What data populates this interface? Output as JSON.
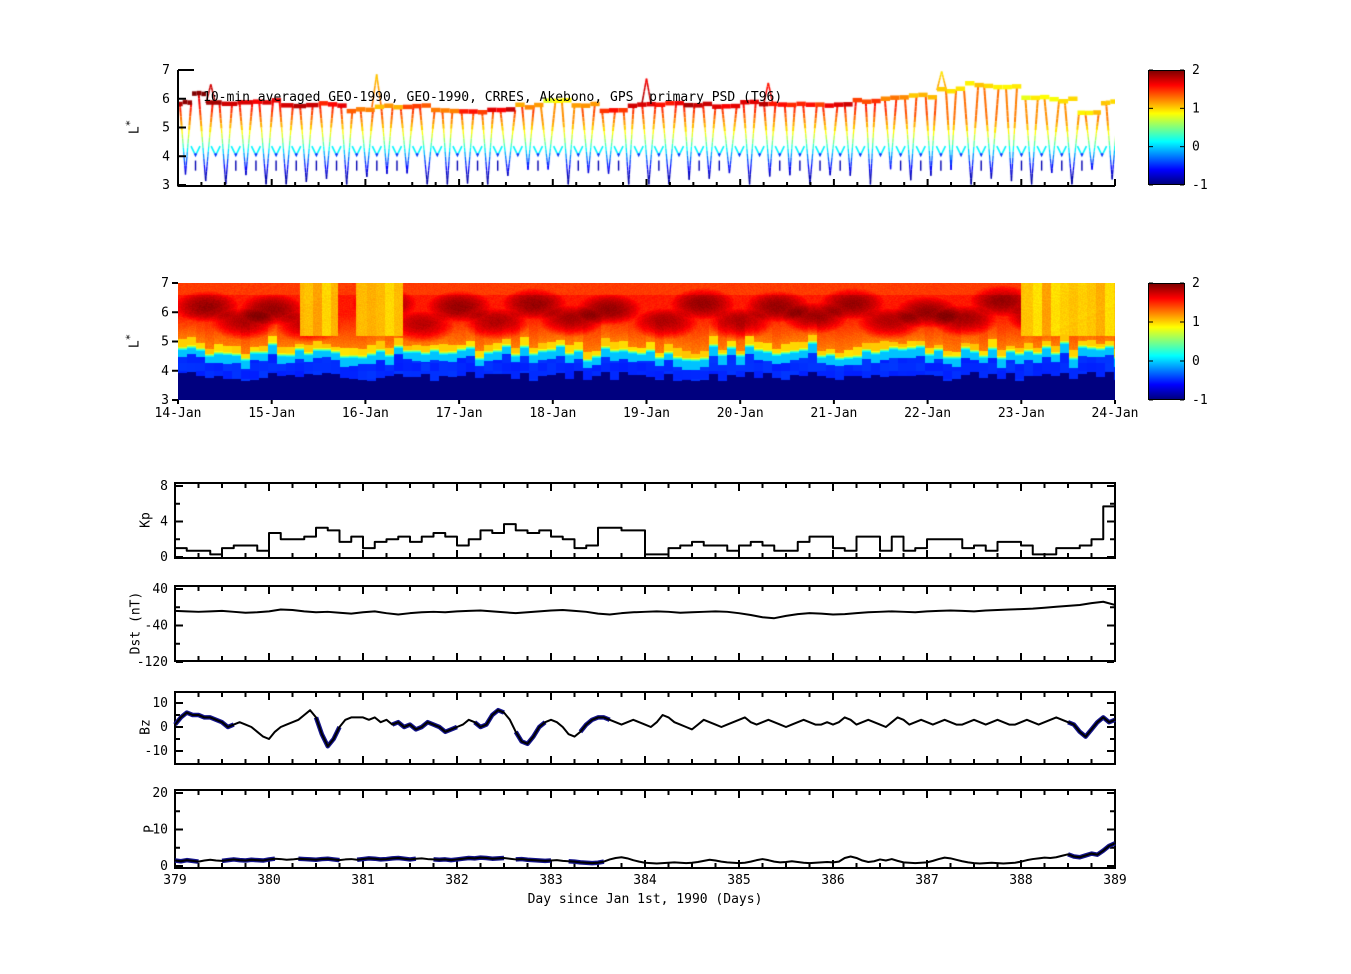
{
  "figure": {
    "bg": "#ffffff"
  },
  "title": "10-min averaged GEO-1990, GEO-1990, CRRES, Akebono, GPS  primary PSD (T96)",
  "xaxis": {
    "label": "Day since Jan 1st, 1990 (Days)",
    "day_ticks": [
      "379",
      "380",
      "381",
      "382",
      "383",
      "384",
      "385",
      "386",
      "387",
      "388",
      "389"
    ],
    "date_ticks": [
      "14-Jan",
      "15-Jan",
      "16-Jan",
      "17-Jan",
      "18-Jan",
      "19-Jan",
      "20-Jan",
      "21-Jan",
      "22-Jan",
      "23-Jan",
      "24-Jan"
    ]
  },
  "colorbar": {
    "min": -1,
    "max": 2,
    "tick_labels": [
      "2",
      "1",
      "0",
      "-1"
    ],
    "tick_values": [
      2,
      1,
      0,
      -1
    ],
    "jet_stops": [
      "#800000",
      "#ff0000",
      "#ffff00",
      "#00ffff",
      "#0000ff",
      "#000080"
    ],
    "jet_positions": [
      0,
      12.5,
      37.5,
      62.5,
      87.5,
      100
    ]
  },
  "chart_data": [
    {
      "type": "scatter",
      "name": "psd_lstar_trajectories",
      "title": "10-min averaged GEO-1990, GEO-1990, CRRES, Akebono, GPS  primary PSD (T96)",
      "ylabel": "L*",
      "ylim": [
        3,
        7
      ],
      "ytick_labels": [
        "3",
        "4",
        "5",
        "6",
        "7"
      ],
      "xlim_days": [
        379,
        389
      ],
      "color_value": "log10 PSD",
      "clim": [
        -1,
        2
      ],
      "geo_band_keypoints": [
        [
          0,
          5.85,
          1.9
        ],
        [
          0.15,
          6.2,
          2.0
        ],
        [
          0.3,
          5.85,
          1.8
        ],
        [
          0.8,
          5.9,
          1.7
        ],
        [
          1.1,
          5.75,
          1.8
        ],
        [
          1.5,
          5.8,
          1.6
        ],
        [
          1.8,
          5.6,
          1.3
        ],
        [
          2.1,
          5.7,
          1.1
        ],
        [
          2.4,
          5.75,
          1.4
        ],
        [
          2.7,
          5.6,
          1.2
        ],
        [
          3.0,
          5.55,
          1.5
        ],
        [
          3.3,
          5.6,
          1.7
        ],
        [
          3.6,
          5.75,
          1.2
        ],
        [
          3.9,
          5.9,
          0.9
        ],
        [
          4.2,
          5.8,
          1.1
        ],
        [
          4.5,
          5.55,
          1.5
        ],
        [
          4.8,
          5.8,
          1.7
        ],
        [
          5.1,
          5.85,
          1.6
        ],
        [
          5.4,
          5.8,
          1.8
        ],
        [
          5.7,
          5.75,
          1.7
        ],
        [
          6.0,
          5.85,
          1.8
        ],
        [
          6.3,
          5.8,
          1.6
        ],
        [
          6.6,
          5.85,
          1.5
        ],
        [
          6.9,
          5.8,
          1.7
        ],
        [
          7.2,
          5.9,
          1.4
        ],
        [
          7.5,
          6.0,
          1.2
        ],
        [
          7.8,
          6.1,
          1.1
        ],
        [
          8.1,
          6.3,
          1.0
        ],
        [
          8.4,
          6.5,
          1.0
        ],
        [
          8.7,
          6.4,
          0.95
        ],
        [
          9.0,
          6.05,
          0.9
        ],
        [
          9.3,
          5.95,
          0.9
        ],
        [
          9.6,
          5.55,
          1.0
        ],
        [
          9.85,
          5.9,
          0.95
        ],
        [
          10,
          5.9,
          1.0
        ]
      ],
      "pass_times": [
        0.08,
        0.295,
        0.51,
        0.725,
        0.94,
        1.155,
        1.37,
        1.585,
        1.8,
        2.015,
        2.23,
        2.445,
        2.66,
        2.875,
        3.09,
        3.305,
        3.52,
        3.735,
        3.95,
        4.165,
        4.38,
        4.595,
        4.81,
        5.025,
        5.24,
        5.455,
        5.67,
        5.885,
        6.1,
        6.315,
        6.53,
        6.745,
        6.96,
        7.175,
        7.39,
        7.605,
        7.82,
        8.035,
        8.25,
        8.465,
        8.68,
        8.895,
        9.11,
        9.325,
        9.54,
        9.755,
        9.97
      ],
      "spikes": [
        [
          0.35,
          6.5
        ],
        [
          2.12,
          6.85
        ],
        [
          5.0,
          6.7
        ],
        [
          6.3,
          6.55
        ],
        [
          8.15,
          6.95
        ]
      ],
      "psd_vs_L_profile": [
        [
          3,
          -0.95
        ],
        [
          3.4,
          -0.8
        ],
        [
          3.8,
          -0.45
        ],
        [
          4.1,
          -0.1
        ],
        [
          4.4,
          0.35
        ],
        [
          4.8,
          0.85
        ],
        [
          5.2,
          1.2
        ],
        [
          5.6,
          1.5
        ],
        [
          6.0,
          1.7
        ]
      ]
    },
    {
      "type": "heatmap",
      "name": "psd_lstar_map",
      "ylabel": "L*",
      "ylim": [
        3,
        7
      ],
      "ytick_labels": [
        "3",
        "4",
        "5",
        "6",
        "7"
      ],
      "xtick_labels": [
        "14-Jan",
        "15-Jan",
        "16-Jan",
        "17-Jan",
        "18-Jan",
        "19-Jan",
        "20-Jan",
        "21-Jan",
        "22-Jan",
        "23-Jan",
        "24-Jan"
      ],
      "clim": [
        -1,
        2
      ],
      "band_structure": {
        "navy_top_L": 3.8,
        "blue_top_L": 4.35,
        "cyan_top_L": 4.6,
        "yellow_top_L": 5.05,
        "navy_value": -1,
        "blue_value": -0.5,
        "cyan_value": -0.05,
        "yellow_value": 0.95,
        "upper_value_range": [
          1.25,
          1.55
        ]
      },
      "dark_red_blobs": [
        [
          0.03,
          6.2
        ],
        [
          0.07,
          5.6
        ],
        [
          0.1,
          6.1
        ],
        [
          0.14,
          5.5
        ],
        [
          0.22,
          6.3
        ],
        [
          0.26,
          5.5
        ],
        [
          0.3,
          6.2
        ],
        [
          0.34,
          5.6
        ],
        [
          0.38,
          6.3
        ],
        [
          0.42,
          5.7
        ],
        [
          0.46,
          6.1
        ],
        [
          0.52,
          5.6
        ],
        [
          0.56,
          6.3
        ],
        [
          0.6,
          5.6
        ],
        [
          0.64,
          6.2
        ],
        [
          0.68,
          5.8
        ],
        [
          0.72,
          6.3
        ],
        [
          0.76,
          5.6
        ],
        [
          0.8,
          6.0
        ],
        [
          0.84,
          5.7
        ],
        [
          0.88,
          6.4
        ],
        [
          0.92,
          5.8
        ]
      ],
      "yellow_plumes": [
        [
          0.13,
          0.17
        ],
        [
          0.19,
          0.24
        ],
        [
          0.9,
          1.0
        ]
      ],
      "seed": 7
    },
    {
      "type": "line",
      "name": "kp",
      "ylabel": "Kp",
      "ylim": [
        0,
        8
      ],
      "ytick_labels": [
        "0",
        "4",
        "8"
      ],
      "ytick_values_major": [
        0,
        4,
        8
      ],
      "ytick_values_minor": [
        2,
        6
      ],
      "x_start_day": 379,
      "x_step_days": 0.125,
      "step_plot": true,
      "values": [
        1,
        0.7,
        0.7,
        0.3,
        1,
        1.3,
        1.3,
        0.7,
        2.7,
        2,
        2,
        2.3,
        3.3,
        3,
        1.7,
        2.3,
        1,
        1.7,
        2,
        2.3,
        1.7,
        2.3,
        2.7,
        2.3,
        1.3,
        2,
        3,
        2.7,
        3.7,
        3,
        2.7,
        3,
        2.3,
        2,
        1,
        1.3,
        3.3,
        3.3,
        3,
        3,
        0.3,
        0.3,
        1,
        1.3,
        1.7,
        1.3,
        1.3,
        0.7,
        1.3,
        1.7,
        1.3,
        0.7,
        0.7,
        1.7,
        2.3,
        2.3,
        1,
        0.7,
        2.3,
        2.3,
        0.7,
        2.3,
        0.7,
        1,
        2,
        2,
        2,
        1,
        1.3,
        0.7,
        1.7,
        1.7,
        1.3,
        0.3,
        0.3,
        1,
        1,
        1.3,
        2,
        5.7
      ]
    },
    {
      "type": "line",
      "name": "dst",
      "ylabel": "Dst (nT)",
      "ylim": [
        -120,
        40
      ],
      "ytick_labels": [
        "-120",
        "-40",
        "40"
      ],
      "ytick_values_major": [
        40,
        -40,
        -120
      ],
      "ytick_values_minor": [
        0,
        -80
      ],
      "x_start_day": 379,
      "x_step_days": 0.125,
      "step_plot": false,
      "values": [
        -8,
        -9,
        -10,
        -9,
        -8,
        -10,
        -12,
        -11,
        -9,
        -5,
        -6,
        -9,
        -11,
        -10,
        -12,
        -14,
        -11,
        -9,
        -13,
        -16,
        -13,
        -11,
        -10,
        -11,
        -9,
        -8,
        -7,
        -9,
        -11,
        -13,
        -11,
        -9,
        -7,
        -6,
        -8,
        -10,
        -14,
        -16,
        -13,
        -11,
        -10,
        -9,
        -10,
        -12,
        -11,
        -10,
        -9,
        -10,
        -13,
        -17,
        -22,
        -24,
        -19,
        -15,
        -13,
        -14,
        -16,
        -15,
        -13,
        -11,
        -10,
        -9,
        -10,
        -11,
        -9,
        -8,
        -7,
        -8,
        -9,
        -7,
        -6,
        -5,
        -4,
        -3,
        -1,
        1,
        3,
        5,
        9,
        12,
        5
      ]
    },
    {
      "type": "line",
      "name": "bz",
      "ylabel": "Bz",
      "ylim": [
        -15,
        15
      ],
      "ytick_labels": [
        "-10",
        "0",
        "10"
      ],
      "ytick_values_major": [
        10,
        0,
        -10
      ],
      "ytick_values_minor": [
        5,
        -5
      ],
      "x_start_day": 379,
      "x_step_days": 0.0625,
      "step_plot": false,
      "highlight_color": "#14148c",
      "highlight_ranges_days": [
        [
          379,
          379.65
        ],
        [
          380.45,
          380.8
        ],
        [
          381.3,
          382.05
        ],
        [
          382.15,
          382.55
        ],
        [
          382.6,
          382.95
        ],
        [
          383.3,
          383.65
        ],
        [
          388.45,
          389
        ]
      ],
      "values": [
        1,
        4,
        6,
        5,
        5,
        4,
        4,
        3,
        2,
        0,
        1,
        2,
        1,
        0,
        -2,
        -4,
        -5,
        -2,
        0,
        1,
        2,
        3,
        5,
        7,
        4,
        -3,
        -8,
        -5,
        0,
        3,
        4,
        4,
        4,
        3,
        4,
        2,
        3,
        1,
        2,
        0,
        1,
        -1,
        0,
        2,
        1,
        0,
        -2,
        -1,
        0,
        1,
        3,
        2,
        0,
        1,
        5,
        7,
        6,
        3,
        -2,
        -6,
        -7,
        -4,
        0,
        2,
        3,
        2,
        0,
        -3,
        -4,
        -2,
        1,
        3,
        4,
        4,
        3,
        2,
        1,
        2,
        3,
        2,
        1,
        0,
        2,
        5,
        4,
        2,
        1,
        0,
        -1,
        1,
        3,
        2,
        1,
        0,
        1,
        2,
        3,
        4,
        2,
        1,
        2,
        3,
        2,
        1,
        0,
        1,
        2,
        3,
        2,
        1,
        1,
        2,
        1,
        2,
        4,
        3,
        1,
        2,
        3,
        2,
        1,
        0,
        2,
        4,
        3,
        1,
        2,
        3,
        2,
        1,
        2,
        3,
        2,
        1,
        1,
        2,
        3,
        2,
        1,
        2,
        3,
        2,
        1,
        1,
        2,
        3,
        2,
        1,
        2,
        3,
        4,
        3,
        2,
        1,
        -2,
        -4,
        -1,
        2,
        4,
        2,
        3
      ]
    },
    {
      "type": "line",
      "name": "p",
      "ylabel": "P",
      "ylim": [
        0,
        20
      ],
      "ytick_labels": [
        "0",
        "10",
        "20"
      ],
      "ytick_values_major": [
        0,
        10,
        20
      ],
      "ytick_values_minor": [
        5,
        15
      ],
      "x_start_day": 379,
      "x_step_days": 0.0625,
      "step_plot": false,
      "highlight_color": "#14148c",
      "highlight_ranges_days": [
        [
          379,
          379.3
        ],
        [
          379.5,
          380.1
        ],
        [
          380.3,
          380.75
        ],
        [
          380.9,
          381.6
        ],
        [
          381.75,
          382.5
        ],
        [
          382.6,
          383.0
        ],
        [
          383.15,
          383.6
        ],
        [
          388.5,
          389
        ]
      ],
      "values": [
        1.5,
        1.3,
        1.6,
        1.4,
        1.2,
        1.5,
        1.7,
        1.5,
        1.4,
        1.6,
        1.8,
        1.6,
        1.5,
        1.7,
        1.6,
        1.5,
        1.8,
        2,
        1.9,
        1.7,
        1.8,
        2,
        1.9,
        1.8,
        1.7,
        1.9,
        2,
        1.8,
        1.6,
        1.8,
        1.9,
        1.7,
        1.9,
        2.1,
        2,
        1.8,
        1.9,
        2.1,
        2.2,
        2,
        1.8,
        2,
        2.1,
        1.9,
        1.8,
        1.7,
        1.8,
        1.6,
        1.8,
        2,
        2.2,
        2.1,
        2.3,
        2.2,
        2,
        2.1,
        2.2,
        2,
        1.8,
        1.9,
        1.7,
        1.6,
        1.5,
        1.4,
        1.5,
        1.6,
        1.4,
        1.3,
        1.2,
        1,
        0.9,
        0.8,
        0.9,
        1.2,
        1.8,
        2.2,
        2.4,
        2.1,
        1.6,
        1.2,
        0.9,
        0.8,
        0.7,
        0.8,
        0.9,
        1,
        0.9,
        0.8,
        0.9,
        1.1,
        1.4,
        1.7,
        1.5,
        1.2,
        1,
        0.9,
        0.8,
        0.9,
        1.2,
        1.6,
        1.9,
        1.6,
        1.2,
        1,
        1.1,
        1.3,
        1.1,
        0.9,
        0.8,
        0.9,
        1,
        1.1,
        1,
        1.2,
        2.2,
        2.6,
        2.2,
        1.5,
        1.1,
        1.3,
        1.8,
        1.5,
        1.9,
        1.4,
        1,
        0.9,
        0.8,
        0.9,
        1,
        1.4,
        1.9,
        2.3,
        2.1,
        1.7,
        1.3,
        1,
        0.8,
        0.7,
        0.8,
        0.9,
        0.8,
        0.7,
        0.8,
        0.9,
        1.2,
        1.6,
        1.9,
        2.1,
        2.3,
        2.2,
        2.4,
        2.8,
        3.2,
        2.6,
        2.4,
        2.9,
        3.4,
        3.1,
        4.2,
        5.5,
        6.2
      ]
    }
  ]
}
